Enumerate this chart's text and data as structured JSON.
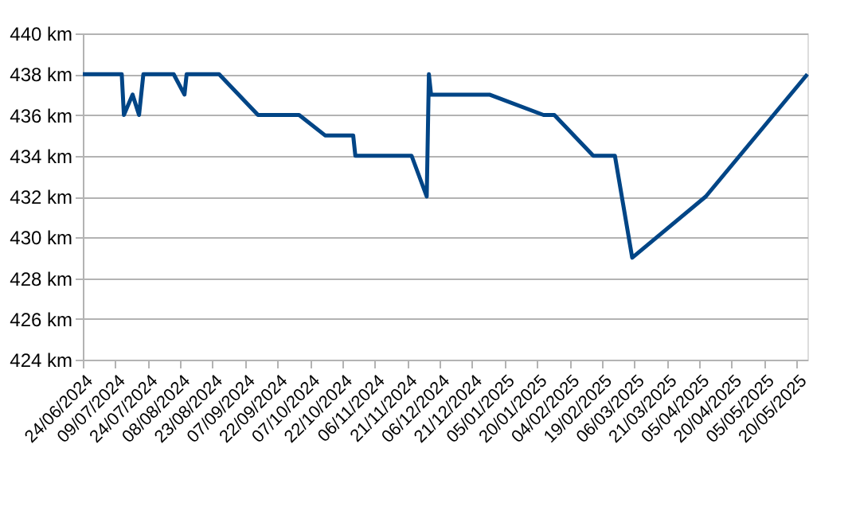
{
  "chart_data": {
    "type": "line",
    "x": [
      "2024-06-24",
      "2024-07-12",
      "2024-07-13",
      "2024-07-17",
      "2024-07-20",
      "2024-07-22",
      "2024-08-05",
      "2024-08-10",
      "2024-08-11",
      "2024-08-26",
      "2024-09-13",
      "2024-10-02",
      "2024-10-14",
      "2024-10-27",
      "2024-10-28",
      "2024-11-23",
      "2024-11-30",
      "2024-12-01",
      "2024-12-02",
      "2024-12-29",
      "2025-01-23",
      "2025-01-28",
      "2025-02-15",
      "2025-02-25",
      "2025-03-05",
      "2025-04-08",
      "2025-05-25"
    ],
    "series": [
      {
        "color": "#004586",
        "values": [
          438,
          438,
          436,
          437,
          436,
          438,
          438,
          437,
          438,
          438,
          436,
          436,
          435,
          435,
          434,
          434,
          432,
          438,
          437,
          437,
          436,
          436,
          434,
          434,
          429,
          432,
          438
        ]
      }
    ],
    "xlim": [
      "2024-06-24",
      "2025-05-25"
    ],
    "xticks": [
      {
        "value": "2024-06-24",
        "label": "24/06/2024"
      },
      {
        "value": "2024-07-09",
        "label": "09/07/2024"
      },
      {
        "value": "2024-07-24",
        "label": "24/07/2024"
      },
      {
        "value": "2024-08-08",
        "label": "08/08/2024"
      },
      {
        "value": "2024-08-23",
        "label": "23/08/2024"
      },
      {
        "value": "2024-09-07",
        "label": "07/09/2024"
      },
      {
        "value": "2024-09-22",
        "label": "22/09/2024"
      },
      {
        "value": "2024-10-07",
        "label": "07/10/2024"
      },
      {
        "value": "2024-10-22",
        "label": "22/10/2024"
      },
      {
        "value": "2024-11-06",
        "label": "06/11/2024"
      },
      {
        "value": "2024-11-21",
        "label": "21/11/2024"
      },
      {
        "value": "2024-12-06",
        "label": "06/12/2024"
      },
      {
        "value": "2024-12-21",
        "label": "21/12/2024"
      },
      {
        "value": "2025-01-05",
        "label": "05/01/2025"
      },
      {
        "value": "2025-01-20",
        "label": "20/01/2025"
      },
      {
        "value": "2025-02-04",
        "label": "04/02/2025"
      },
      {
        "value": "2025-02-19",
        "label": "19/02/2025"
      },
      {
        "value": "2025-03-06",
        "label": "06/03/2025"
      },
      {
        "value": "2025-03-21",
        "label": "21/03/2025"
      },
      {
        "value": "2025-04-05",
        "label": "05/04/2025"
      },
      {
        "value": "2025-04-20",
        "label": "20/04/2025"
      },
      {
        "value": "2025-05-05",
        "label": "05/05/2025"
      },
      {
        "value": "2025-05-20",
        "label": "20/05/2025"
      }
    ],
    "ylim": [
      424,
      440
    ],
    "yticks": [
      {
        "value": 424,
        "label": "424 km"
      },
      {
        "value": 426,
        "label": "426 km"
      },
      {
        "value": 428,
        "label": "428 km"
      },
      {
        "value": 430,
        "label": "430 km"
      },
      {
        "value": 432,
        "label": "432 km"
      },
      {
        "value": 434,
        "label": "434 km"
      },
      {
        "value": 436,
        "label": "436 km"
      },
      {
        "value": 438,
        "label": "438 km"
      },
      {
        "value": 440,
        "label": "440 km"
      }
    ],
    "grid": "y",
    "marker": "none",
    "line_style": "solid"
  }
}
